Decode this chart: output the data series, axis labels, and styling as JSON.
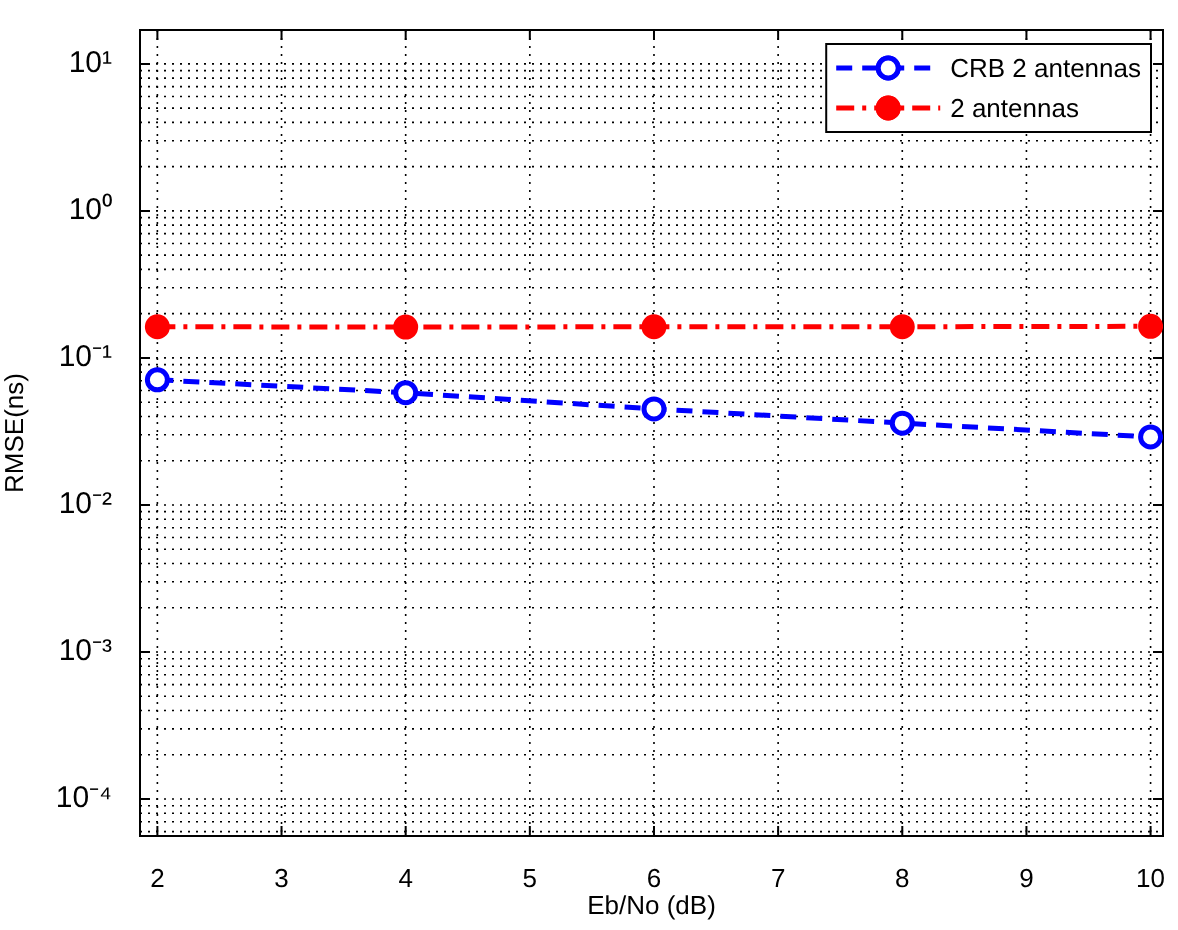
{
  "chart_data": {
    "type": "line",
    "xlabel": "Eb/No (dB)",
    "ylabel": "RMSE(ns)",
    "x": [
      2,
      4,
      6,
      8,
      10
    ],
    "series": [
      {
        "name": "CRB 2 antennas",
        "color": "#0000ff",
        "values": [
          0.071,
          0.058,
          0.045,
          0.036,
          0.029
        ],
        "line_style": "dashed",
        "marker": "circle"
      },
      {
        "name": "2 antennas",
        "color": "#ff0000",
        "values": [
          0.163,
          0.162,
          0.163,
          0.163,
          0.164
        ],
        "line_style": "dashdot",
        "marker": "circle"
      }
    ],
    "xlim": [
      1.86,
      10.1
    ],
    "xticks": [
      2,
      3,
      4,
      5,
      6,
      7,
      8,
      9,
      10
    ],
    "ylim": [
      5.6e-05,
      17
    ],
    "yticks": [
      {
        "value": 0.0001,
        "label": "10⁻⁴"
      },
      {
        "value": 0.001,
        "label": "10⁻³"
      },
      {
        "value": 0.01,
        "label": "10⁻²"
      },
      {
        "value": 0.1,
        "label": "10⁻¹"
      },
      {
        "value": 1,
        "label": "10⁰"
      },
      {
        "value": 10,
        "label": "10¹"
      }
    ],
    "log": "y",
    "grid": true,
    "legend": "top right"
  }
}
